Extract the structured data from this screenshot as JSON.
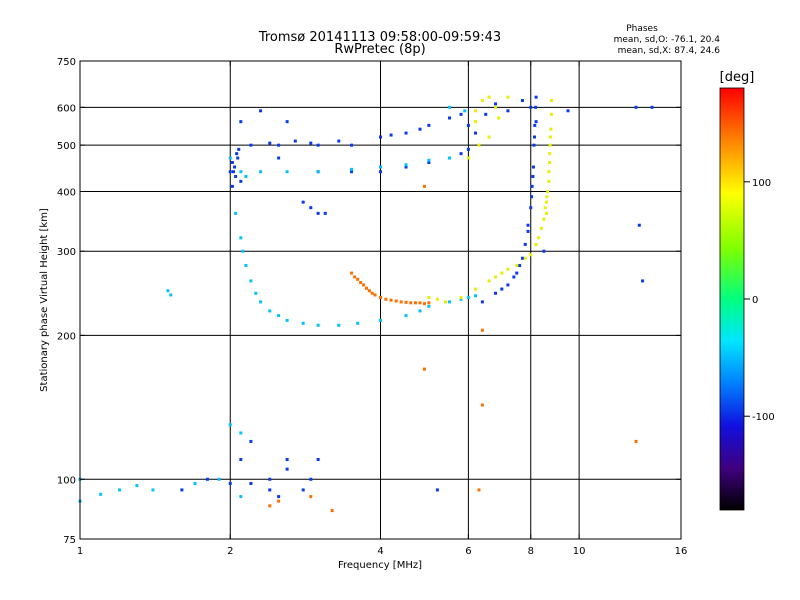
{
  "chart_data": {
    "type": "scatter",
    "title": "Tromsø 20141113 09:58:00-09:59:43",
    "subtitle": "RwPretec (8p)",
    "xlabel": "Frequency [MHz]",
    "ylabel": "Stationary phase Virtual Height [km]",
    "x_scale": "log",
    "y_scale": "log",
    "xlim": [
      1,
      16
    ],
    "ylim": [
      75,
      750
    ],
    "x_ticks": [
      1,
      2,
      4,
      6,
      8,
      10,
      16
    ],
    "x_tick_labels": [
      "1",
      "2",
      "4",
      "6",
      "8",
      "10",
      "16"
    ],
    "y_ticks": [
      75,
      100,
      200,
      300,
      400,
      500,
      600,
      750
    ],
    "y_tick_labels": [
      "75",
      "100",
      "200",
      "300",
      "400",
      "500",
      "600",
      "750"
    ],
    "x_grid": [
      2,
      4,
      6,
      8,
      10
    ],
    "y_grid": [
      100,
      200,
      300,
      400,
      500,
      600
    ],
    "grid": true,
    "stats": {
      "heading": "Phases",
      "o_line": "mean, sd,O: -76.1, 20.4",
      "x_line": "mean, sd,X:  87.4, 24.6"
    },
    "colorbar": {
      "label": "[deg]",
      "range": [
        -180,
        180
      ],
      "ticks": [
        100,
        0,
        -100
      ],
      "tick_labels": [
        "100",
        "0",
        "-100"
      ],
      "colormap": "rainbow"
    },
    "series": [
      {
        "mode": "O",
        "phase_deg": -85,
        "points": [
          [
            2.0,
            440
          ],
          [
            2.02,
            460
          ],
          [
            2.04,
            450
          ],
          [
            2.05,
            430
          ],
          [
            2.07,
            470
          ],
          [
            2.08,
            490
          ],
          [
            2.1,
            420
          ],
          [
            2.02,
            410
          ],
          [
            2.06,
            480
          ],
          [
            2.03,
            440
          ],
          [
            2.2,
            500
          ],
          [
            2.5,
            470
          ],
          [
            3.0,
            440
          ],
          [
            3.5,
            440
          ],
          [
            4.0,
            440
          ],
          [
            4.5,
            450
          ],
          [
            5.0,
            460
          ],
          [
            5.5,
            470
          ],
          [
            5.8,
            480
          ],
          [
            6.0,
            490
          ],
          [
            3.0,
            500
          ],
          [
            3.5,
            500
          ],
          [
            4.0,
            520
          ],
          [
            4.5,
            530
          ],
          [
            5.0,
            550
          ],
          [
            5.5,
            570
          ],
          [
            5.8,
            580
          ],
          [
            3.3,
            510
          ],
          [
            4.2,
            525
          ],
          [
            4.8,
            540
          ],
          [
            2.5,
            500
          ],
          [
            2.7,
            510
          ],
          [
            2.9,
            505
          ],
          [
            2.4,
            505
          ],
          [
            2.8,
            380
          ],
          [
            2.9,
            370
          ],
          [
            3.0,
            360
          ],
          [
            3.1,
            360
          ],
          [
            2.3,
            590
          ],
          [
            2.6,
            560
          ],
          [
            2.1,
            560
          ],
          [
            6.0,
            550
          ],
          [
            6.2,
            530
          ],
          [
            6.5,
            580
          ],
          [
            6.8,
            610
          ],
          [
            7.2,
            590
          ],
          [
            7.7,
            620
          ],
          [
            8.0,
            600
          ],
          [
            8.2,
            560
          ],
          [
            6.4,
            235
          ],
          [
            6.8,
            245
          ],
          [
            7.2,
            255
          ],
          [
            7.5,
            270
          ],
          [
            7.7,
            290
          ],
          [
            7.8,
            310
          ],
          [
            7.9,
            340
          ],
          [
            8.0,
            370
          ],
          [
            8.05,
            410
          ],
          [
            8.1,
            450
          ],
          [
            8.12,
            500
          ],
          [
            8.15,
            550
          ],
          [
            8.18,
            600
          ],
          [
            8.2,
            630
          ],
          [
            7.6,
            280
          ],
          [
            7.9,
            330
          ],
          [
            8.03,
            390
          ],
          [
            8.08,
            430
          ],
          [
            8.14,
            520
          ],
          [
            7.4,
            265
          ],
          [
            7.0,
            250
          ],
          [
            2.4,
            100
          ],
          [
            2.6,
            105
          ],
          [
            2.8,
            95
          ],
          [
            2.2,
            98
          ],
          [
            1.8,
            100
          ],
          [
            1.6,
            95
          ],
          [
            2.0,
            98
          ],
          [
            2.5,
            92
          ],
          [
            2.6,
            110
          ],
          [
            2.9,
            100
          ],
          [
            2.2,
            120
          ],
          [
            2.1,
            110
          ],
          [
            3.0,
            110
          ],
          [
            2.4,
            95
          ],
          [
            13.0,
            600
          ],
          [
            13.2,
            340
          ],
          [
            13.4,
            260
          ],
          [
            14.0,
            600
          ],
          [
            5.2,
            95
          ],
          [
            9.5,
            590
          ],
          [
            8.5,
            300
          ]
        ]
      },
      {
        "mode": "O-lower",
        "phase_deg": -40,
        "points": [
          [
            2.05,
            360
          ],
          [
            2.1,
            320
          ],
          [
            2.12,
            300
          ],
          [
            2.15,
            280
          ],
          [
            2.2,
            260
          ],
          [
            2.25,
            245
          ],
          [
            2.3,
            235
          ],
          [
            2.4,
            225
          ],
          [
            2.5,
            220
          ],
          [
            2.6,
            215
          ],
          [
            2.8,
            212
          ],
          [
            3.0,
            210
          ],
          [
            3.3,
            210
          ],
          [
            3.6,
            212
          ],
          [
            4.0,
            215
          ],
          [
            4.5,
            220
          ],
          [
            4.8,
            225
          ],
          [
            5.0,
            230
          ],
          [
            5.5,
            235
          ],
          [
            5.8,
            238
          ],
          [
            6.0,
            240
          ],
          [
            6.2,
            242
          ],
          [
            2.1,
            440
          ],
          [
            2.15,
            430
          ],
          [
            2.0,
            470
          ],
          [
            2.3,
            440
          ],
          [
            2.6,
            440
          ],
          [
            3.0,
            440
          ],
          [
            3.5,
            445
          ],
          [
            4.0,
            450
          ],
          [
            4.5,
            455
          ],
          [
            5.0,
            465
          ],
          [
            5.5,
            470
          ],
          [
            1.5,
            248
          ],
          [
            1.52,
            243
          ],
          [
            1.2,
            95
          ],
          [
            1.4,
            95
          ],
          [
            1.7,
            98
          ],
          [
            1.9,
            100
          ],
          [
            2.1,
            92
          ],
          [
            1.3,
            97
          ],
          [
            1.1,
            93
          ],
          [
            1.0,
            100
          ],
          [
            1.0,
            90
          ],
          [
            2.0,
            130
          ],
          [
            2.1,
            125
          ],
          [
            5.5,
            600
          ],
          [
            5.9,
            590
          ]
        ]
      },
      {
        "mode": "X",
        "phase_deg": 90,
        "points": [
          [
            5.4,
            235
          ],
          [
            5.8,
            240
          ],
          [
            6.2,
            250
          ],
          [
            6.6,
            260
          ],
          [
            7.0,
            270
          ],
          [
            7.5,
            280
          ],
          [
            8.0,
            295
          ],
          [
            8.3,
            320
          ],
          [
            8.5,
            350
          ],
          [
            8.6,
            380
          ],
          [
            8.7,
            420
          ],
          [
            8.72,
            460
          ],
          [
            8.75,
            500
          ],
          [
            8.78,
            540
          ],
          [
            8.8,
            580
          ],
          [
            8.8,
            620
          ],
          [
            8.6,
            360
          ],
          [
            8.65,
            400
          ],
          [
            8.7,
            440
          ],
          [
            8.73,
            480
          ],
          [
            8.76,
            520
          ],
          [
            8.62,
            390
          ],
          [
            8.55,
            370
          ],
          [
            8.4,
            335
          ],
          [
            8.2,
            310
          ],
          [
            7.8,
            290
          ],
          [
            7.2,
            275
          ],
          [
            6.8,
            265
          ],
          [
            6.4,
            620
          ],
          [
            6.6,
            630
          ],
          [
            6.8,
            600
          ],
          [
            7.2,
            630
          ],
          [
            6.2,
            590
          ],
          [
            6.0,
            470
          ],
          [
            6.3,
            500
          ],
          [
            6.6,
            520
          ],
          [
            6.2,
            560
          ],
          [
            6.9,
            570
          ],
          [
            5.0,
            240
          ],
          [
            5.2,
            238
          ]
        ]
      },
      {
        "mode": "X-orange",
        "phase_deg": 145,
        "points": [
          [
            3.5,
            270
          ],
          [
            3.6,
            262
          ],
          [
            3.7,
            255
          ],
          [
            3.8,
            248
          ],
          [
            3.9,
            243
          ],
          [
            4.0,
            240
          ],
          [
            4.2,
            237
          ],
          [
            4.4,
            235
          ],
          [
            4.6,
            234
          ],
          [
            4.8,
            234
          ],
          [
            5.0,
            234
          ],
          [
            3.55,
            265
          ],
          [
            3.65,
            258
          ],
          [
            3.75,
            251
          ],
          [
            3.85,
            245
          ],
          [
            4.1,
            238
          ],
          [
            4.3,
            236
          ],
          [
            4.5,
            234.5
          ],
          [
            4.7,
            234
          ],
          [
            4.9,
            233
          ],
          [
            2.4,
            88
          ],
          [
            3.2,
            86
          ],
          [
            2.9,
            92
          ],
          [
            2.5,
            90
          ],
          [
            6.4,
            205
          ],
          [
            6.3,
            95
          ],
          [
            13.0,
            120
          ],
          [
            4.9,
            410
          ],
          [
            4.9,
            170
          ],
          [
            6.4,
            143
          ]
        ]
      }
    ]
  }
}
